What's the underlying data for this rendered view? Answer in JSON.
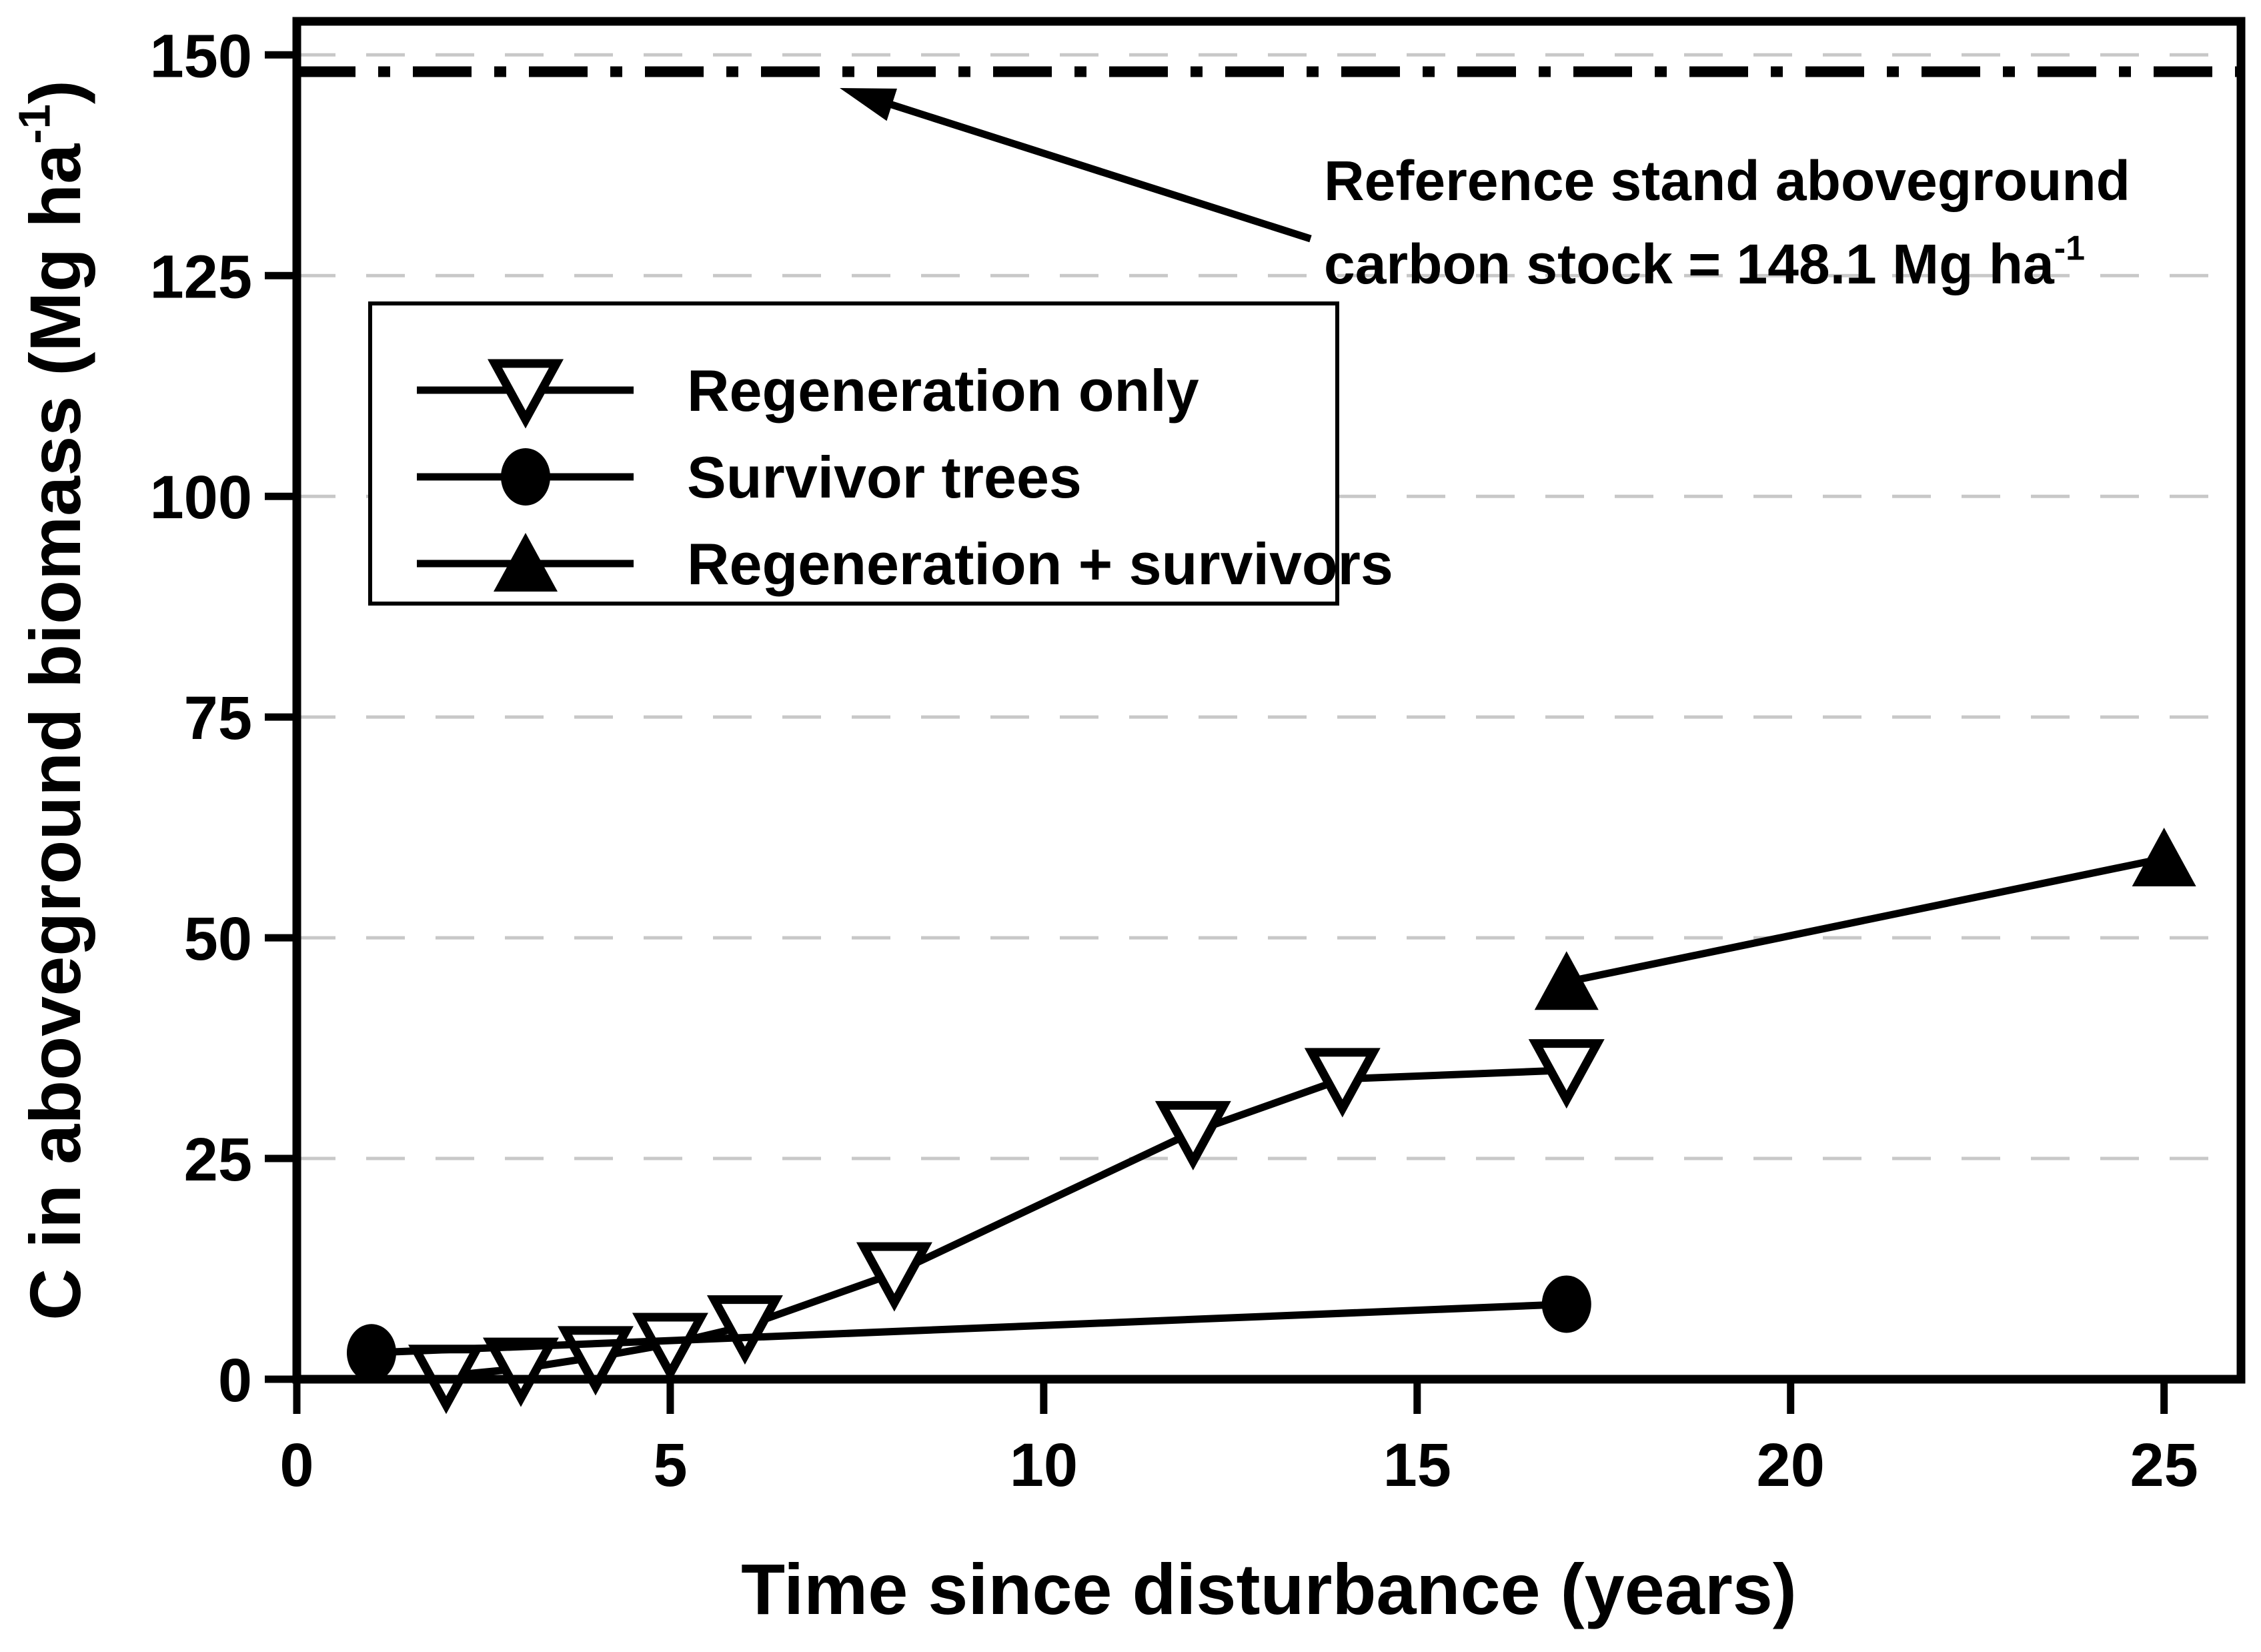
{
  "chart_data": {
    "type": "line",
    "title": "",
    "xlabel": "Time since disturbance (years)",
    "ylabel_parts": [
      {
        "t": "C in aboveground biomass (Mg ha",
        "sup": false
      },
      {
        "t": "-1",
        "sup": true
      },
      {
        "t": ")",
        "sup": false
      }
    ],
    "xlim": [
      0,
      26.03
    ],
    "ylim": [
      0,
      153.8
    ],
    "x_ticks": [
      0,
      5,
      10,
      15,
      20,
      25
    ],
    "y_ticks": [
      0,
      25,
      50,
      75,
      100,
      125,
      150
    ],
    "gridlines_y": [
      25,
      50,
      75,
      100,
      125,
      150
    ],
    "grid_on": true,
    "grid_color": "#c8c8c8",
    "line_color": "#000000",
    "background_color": "#ffffff",
    "legend_position": "upper-left",
    "reference_line": {
      "value": 148.1,
      "style": "dash-dot",
      "label_line1": "Reference stand aboveground",
      "label_line2_parts": [
        {
          "t": "carbon stock = 148.1 Mg ha",
          "sup": false
        },
        {
          "t": "-1",
          "sup": true
        }
      ]
    },
    "series": [
      {
        "name": "Regeneration only",
        "marker": "triangle-down-open",
        "x": [
          2,
          3,
          4,
          5,
          6,
          8,
          12,
          14,
          17
        ],
        "values": [
          0.4,
          1.2,
          2.5,
          4,
          6,
          12,
          28,
          34,
          35
        ]
      },
      {
        "name": "Survivor trees",
        "marker": "circle-filled",
        "x": [
          1,
          17
        ],
        "values": [
          3,
          8.5
        ]
      },
      {
        "name": "Regeneration + survivors",
        "marker": "triangle-up-filled",
        "x": [
          17,
          25
        ],
        "values": [
          45,
          59
        ]
      }
    ]
  }
}
